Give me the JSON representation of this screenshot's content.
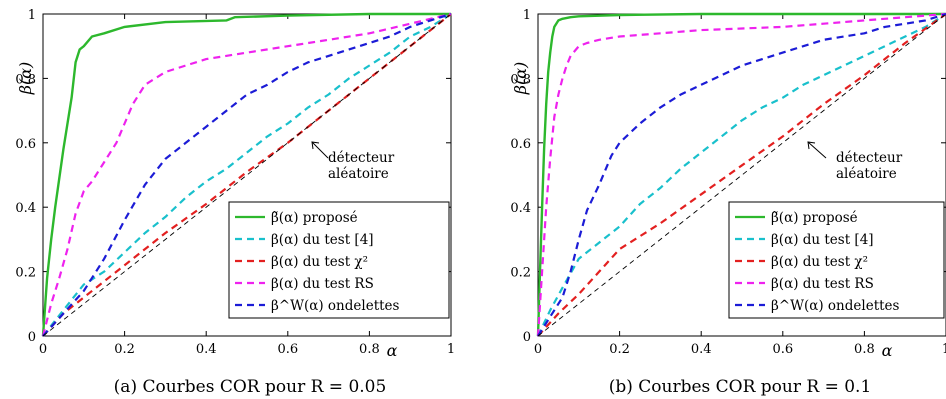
{
  "chart_data": [
    {
      "type": "line",
      "caption": "(a) Courbes COR pour R = 0.05",
      "xlabel": "α",
      "ylabel": "β(α)",
      "xlim": [
        0,
        1
      ],
      "ylim": [
        0,
        1
      ],
      "xticks": [
        "0",
        "0.2",
        "0.4",
        "0.6",
        "0.8",
        "1"
      ],
      "yticks": [
        "0",
        "0.2",
        "0.4",
        "0.6",
        "0.8",
        "1"
      ],
      "grid": false,
      "legend_position": "bottom-right",
      "annotation": [
        "détecteur",
        "aléatoire"
      ],
      "series": [
        {
          "name": "β̃(α) proposé",
          "color": "#2db82d",
          "style": "solid",
          "x": [
            0,
            0.01,
            0.02,
            0.03,
            0.05,
            0.07,
            0.08,
            0.09,
            0.1,
            0.12,
            0.15,
            0.2,
            0.3,
            0.45,
            0.47,
            0.6,
            0.8,
            1
          ],
          "y": [
            0,
            0.18,
            0.3,
            0.4,
            0.58,
            0.74,
            0.85,
            0.89,
            0.9,
            0.93,
            0.94,
            0.96,
            0.975,
            0.98,
            0.99,
            0.995,
            1.0,
            1.0
          ]
        },
        {
          "name": "β(α) du test [4]",
          "color": "#19c0cc",
          "style": "dashed",
          "x": [
            0,
            0.05,
            0.1,
            0.15,
            0.2,
            0.25,
            0.3,
            0.35,
            0.4,
            0.45,
            0.5,
            0.55,
            0.6,
            0.65,
            0.7,
            0.75,
            0.8,
            0.85,
            0.9,
            0.95,
            1
          ],
          "y": [
            0,
            0.08,
            0.16,
            0.2,
            0.26,
            0.32,
            0.37,
            0.43,
            0.48,
            0.52,
            0.57,
            0.62,
            0.66,
            0.71,
            0.75,
            0.8,
            0.84,
            0.88,
            0.93,
            0.96,
            1.0
          ]
        },
        {
          "name": "β(α) du test χ²",
          "color": "#e32020",
          "style": "dashed",
          "x": [
            0,
            0.05,
            0.1,
            0.2,
            0.3,
            0.4,
            0.5,
            0.6,
            0.7,
            0.8,
            0.9,
            1
          ],
          "y": [
            0,
            0.07,
            0.12,
            0.22,
            0.32,
            0.41,
            0.51,
            0.6,
            0.7,
            0.8,
            0.9,
            1.0
          ]
        },
        {
          "name": "β(α) du test RS",
          "color": "#ee22ee",
          "style": "dashed",
          "x": [
            0,
            0.02,
            0.04,
            0.06,
            0.08,
            0.1,
            0.12,
            0.15,
            0.18,
            0.2,
            0.22,
            0.25,
            0.3,
            0.35,
            0.4,
            0.5,
            0.6,
            0.7,
            0.8,
            0.9,
            1
          ],
          "y": [
            0,
            0.1,
            0.18,
            0.27,
            0.38,
            0.45,
            0.48,
            0.54,
            0.6,
            0.66,
            0.72,
            0.78,
            0.82,
            0.84,
            0.86,
            0.88,
            0.9,
            0.92,
            0.94,
            0.97,
            1.0
          ]
        },
        {
          "name": "β^W(α) ondelettes",
          "color": "#1c1cd6",
          "style": "dashed",
          "x": [
            0,
            0.05,
            0.1,
            0.15,
            0.2,
            0.25,
            0.3,
            0.35,
            0.4,
            0.45,
            0.5,
            0.55,
            0.6,
            0.65,
            0.7,
            0.75,
            0.8,
            0.85,
            0.9,
            0.95,
            1
          ],
          "y": [
            0,
            0.07,
            0.14,
            0.24,
            0.36,
            0.47,
            0.55,
            0.6,
            0.65,
            0.7,
            0.75,
            0.78,
            0.82,
            0.85,
            0.87,
            0.89,
            0.91,
            0.93,
            0.96,
            0.98,
            1.0
          ]
        },
        {
          "name": "",
          "color": "#000000",
          "style": "dashed-thin",
          "x": [
            0,
            1
          ],
          "y": [
            0,
            1
          ]
        }
      ]
    },
    {
      "type": "line",
      "caption": "(b) Courbes COR pour R = 0.1",
      "xlabel": "α",
      "ylabel": "β(α)",
      "xlim": [
        0,
        1
      ],
      "ylim": [
        0,
        1
      ],
      "xticks": [
        "0",
        "0.2",
        "0.4",
        "0.6",
        "0.8",
        "1"
      ],
      "yticks": [
        "0",
        "0.2",
        "0.4",
        "0.6",
        "0.8",
        "1"
      ],
      "grid": false,
      "legend_position": "bottom-right",
      "annotation": [
        "détecteur",
        "aléatoire"
      ],
      "series": [
        {
          "name": "β̃(α) proposé",
          "color": "#2db82d",
          "style": "solid",
          "x": [
            0,
            0.005,
            0.01,
            0.015,
            0.02,
            0.025,
            0.03,
            0.035,
            0.04,
            0.05,
            0.06,
            0.08,
            0.1,
            0.2,
            0.4,
            0.6,
            0.8,
            1
          ],
          "y": [
            0,
            0.2,
            0.4,
            0.58,
            0.72,
            0.82,
            0.88,
            0.93,
            0.96,
            0.98,
            0.985,
            0.99,
            0.993,
            0.997,
            1.0,
            1.0,
            1.0,
            1.0
          ]
        },
        {
          "name": "β(α) du test [4]",
          "color": "#19c0cc",
          "style": "dashed",
          "x": [
            0,
            0.03,
            0.06,
            0.1,
            0.15,
            0.2,
            0.25,
            0.3,
            0.35,
            0.4,
            0.45,
            0.5,
            0.55,
            0.6,
            0.65,
            0.7,
            0.75,
            0.8,
            0.85,
            0.9,
            0.95,
            1
          ],
          "y": [
            0,
            0.08,
            0.15,
            0.24,
            0.29,
            0.34,
            0.41,
            0.46,
            0.52,
            0.57,
            0.62,
            0.67,
            0.71,
            0.74,
            0.78,
            0.81,
            0.84,
            0.87,
            0.9,
            0.93,
            0.96,
            1.0
          ]
        },
        {
          "name": "β(α) du test χ²",
          "color": "#e32020",
          "style": "dashed",
          "x": [
            0,
            0.05,
            0.1,
            0.2,
            0.3,
            0.4,
            0.5,
            0.6,
            0.7,
            0.8,
            0.9,
            1
          ],
          "y": [
            0,
            0.07,
            0.13,
            0.27,
            0.35,
            0.44,
            0.53,
            0.62,
            0.72,
            0.81,
            0.91,
            1.0
          ]
        },
        {
          "name": "β(α) du test RS",
          "color": "#ee22ee",
          "style": "dashed",
          "x": [
            0,
            0.01,
            0.02,
            0.03,
            0.04,
            0.05,
            0.06,
            0.07,
            0.08,
            0.1,
            0.12,
            0.15,
            0.2,
            0.3,
            0.4,
            0.5,
            0.6,
            0.7,
            0.8,
            0.9,
            1
          ],
          "y": [
            0,
            0.2,
            0.4,
            0.55,
            0.68,
            0.75,
            0.8,
            0.84,
            0.87,
            0.9,
            0.91,
            0.92,
            0.93,
            0.94,
            0.95,
            0.955,
            0.96,
            0.97,
            0.98,
            0.99,
            1.0
          ]
        },
        {
          "name": "β^W(α) ondelettes",
          "color": "#1c1cd6",
          "style": "dashed",
          "x": [
            0,
            0.03,
            0.06,
            0.08,
            0.1,
            0.12,
            0.15,
            0.18,
            0.2,
            0.25,
            0.3,
            0.35,
            0.4,
            0.45,
            0.5,
            0.55,
            0.6,
            0.65,
            0.7,
            0.75,
            0.8,
            0.85,
            0.9,
            0.95,
            1
          ],
          "y": [
            0,
            0.06,
            0.12,
            0.2,
            0.3,
            0.39,
            0.47,
            0.56,
            0.6,
            0.66,
            0.71,
            0.75,
            0.78,
            0.81,
            0.84,
            0.86,
            0.88,
            0.9,
            0.92,
            0.93,
            0.94,
            0.96,
            0.97,
            0.98,
            1.0
          ]
        },
        {
          "name": "",
          "color": "#000000",
          "style": "dashed-thin",
          "x": [
            0,
            1
          ],
          "y": [
            0,
            1
          ]
        }
      ]
    }
  ]
}
